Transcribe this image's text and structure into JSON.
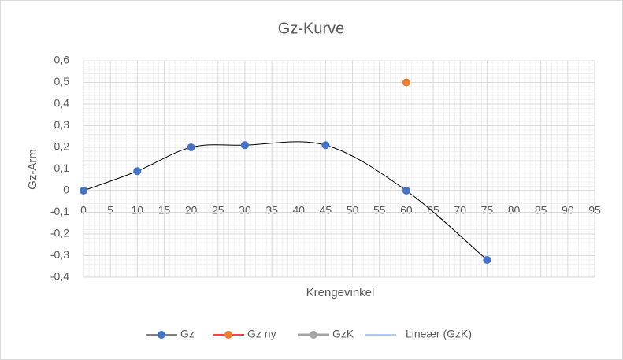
{
  "chart_data": {
    "type": "line",
    "title": "Gz-Kurve",
    "x_label": "Krengevinkel",
    "y_label": "Gz-Arm",
    "xlim": [
      0,
      95
    ],
    "xticks": [
      0,
      5,
      10,
      15,
      20,
      25,
      30,
      35,
      40,
      45,
      50,
      55,
      60,
      65,
      70,
      75,
      80,
      85,
      90,
      95
    ],
    "ylim": [
      -0.4,
      0.6
    ],
    "yticks": [
      {
        "value": -0.4,
        "label": "-0,4"
      },
      {
        "value": -0.3,
        "label": "-0,3"
      },
      {
        "value": -0.2,
        "label": "-0,2"
      },
      {
        "value": -0.1,
        "label": "-0,1"
      },
      0,
      {
        "value": 0.1,
        "label": "0,1"
      },
      {
        "value": 0.2,
        "label": "0,2"
      },
      {
        "value": 0.3,
        "label": "0,3"
      },
      {
        "value": 0.4,
        "label": "0,4"
      },
      {
        "value": 0.5,
        "label": "0,5"
      },
      {
        "value": 0.6,
        "label": "0,6"
      }
    ],
    "grid": true,
    "minor_grid": true,
    "smooth": true,
    "legend": "bottom",
    "series": [
      {
        "name": "Gz",
        "color": "#4472c4",
        "line_color": "#000000",
        "x": [
          0,
          10,
          20,
          30,
          45,
          60,
          75
        ],
        "values": [
          0,
          0.09,
          0.2,
          0.21,
          0.21,
          0,
          -0.32
        ]
      },
      {
        "name": "Gz ny",
        "color": "#ed7d31",
        "line_color": "#ff0000",
        "x": [
          60
        ],
        "values": [
          0.5
        ]
      },
      {
        "name": "GzK",
        "color": "#a5a5a5",
        "line_color": "#a5a5a5",
        "x": [],
        "values": []
      },
      {
        "name": "Lineær (GzK)",
        "color": "#5b9bd5",
        "line_color": "#5b9bd5",
        "marker": false,
        "x": [],
        "values": []
      }
    ]
  }
}
